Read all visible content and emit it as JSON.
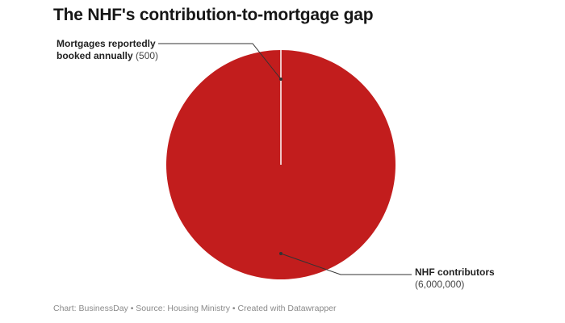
{
  "chart_data": {
    "type": "pie",
    "title": "The NHF's contribution-to-mortgage gap",
    "categories": [
      "Mortgages reportedly booked annually",
      "NHF contributors"
    ],
    "values": [
      500,
      6000000
    ],
    "value_labels": [
      "(500)",
      "(6,000,000)"
    ],
    "colors": [
      "#ffffff",
      "#c21d1d"
    ],
    "label_lines": {
      "small_line1": "Mortgages reportedly",
      "small_line2": "booked annually",
      "large_line1": "NHF contributors"
    },
    "legend": "none"
  },
  "footer": {
    "text": "Chart: BusinessDay • Source: Housing Ministry • Created with Datawrapper"
  }
}
